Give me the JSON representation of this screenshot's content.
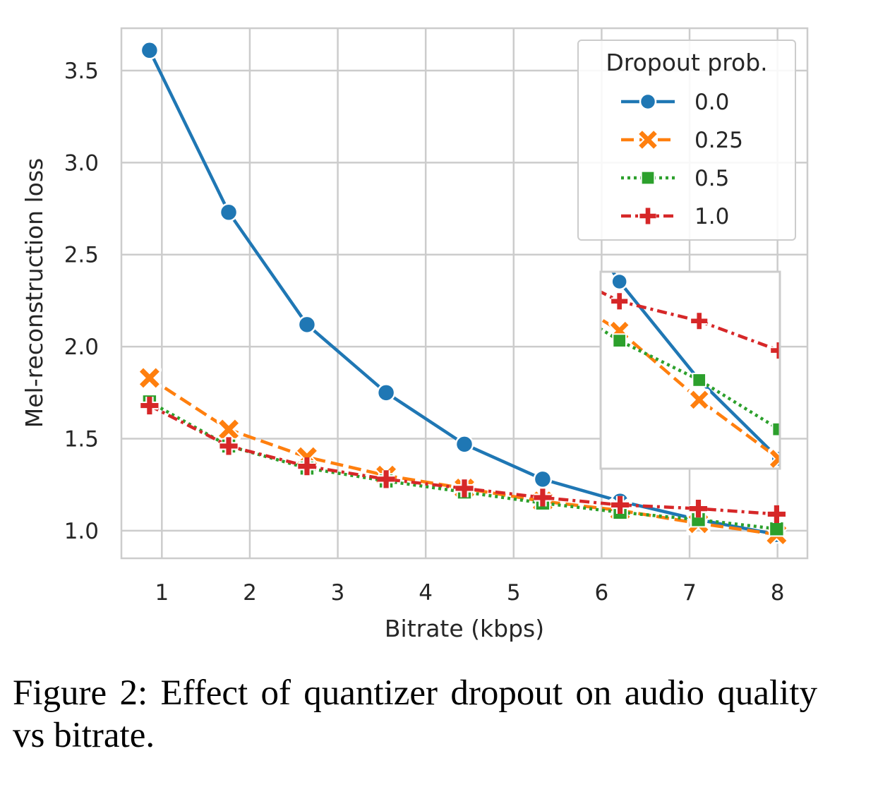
{
  "caption": "Figure 2: Effect of quantizer dropout on audio quality vs bitrate.",
  "chart_data": {
    "type": "line",
    "xlabel": "Bitrate (kbps)",
    "ylabel": "Mel-reconstruction loss",
    "xlim": [
      0.54,
      8.34
    ],
    "ylim": [
      0.85,
      3.73
    ],
    "xticks": [
      1,
      2,
      3,
      4,
      5,
      6,
      7,
      8
    ],
    "yticks": [
      1.0,
      1.5,
      2.0,
      2.5,
      3.0,
      3.5
    ],
    "xtick_labels": [
      "1",
      "2",
      "3",
      "4",
      "5",
      "6",
      "7",
      "8"
    ],
    "ytick_labels": [
      "1.0",
      "1.5",
      "2.0",
      "2.5",
      "3.0",
      "3.5"
    ],
    "grid": true,
    "legend": {
      "title": "Dropout prob.",
      "placement": "top-right"
    },
    "x": [
      0.86,
      1.76,
      2.65,
      3.55,
      4.44,
      5.33,
      6.21,
      7.1,
      7.99
    ],
    "series": [
      {
        "name": "0.0",
        "color": "#1f77b4",
        "marker": "circle",
        "linestyle": "solid",
        "values": [
          3.61,
          2.73,
          2.12,
          1.75,
          1.47,
          1.28,
          1.16,
          1.06,
          0.98
        ]
      },
      {
        "name": "0.25",
        "color": "#ff7f0e",
        "marker": "x",
        "linestyle": "dashed",
        "values": [
          1.83,
          1.55,
          1.4,
          1.3,
          1.23,
          1.16,
          1.11,
          1.04,
          0.98
        ]
      },
      {
        "name": "0.5",
        "color": "#2ca02c",
        "marker": "square",
        "linestyle": "dotted",
        "values": [
          1.7,
          1.46,
          1.34,
          1.27,
          1.21,
          1.15,
          1.1,
          1.06,
          1.01
        ]
      },
      {
        "name": "1.0",
        "color": "#d62728",
        "marker": "plus",
        "linestyle": "dashdot",
        "values": [
          1.68,
          1.46,
          1.35,
          1.28,
          1.23,
          1.18,
          1.14,
          1.12,
          1.09
        ]
      }
    ],
    "inset": {
      "x_range": [
        6.0,
        8.0
      ],
      "y_range": [
        0.97,
        1.17
      ],
      "x": [
        6.21,
        7.1,
        7.99
      ],
      "series_values": [
        [
          1.16,
          1.06,
          0.98
        ],
        [
          1.11,
          1.04,
          0.98
        ],
        [
          1.1,
          1.06,
          1.01
        ],
        [
          1.14,
          1.12,
          1.09
        ]
      ]
    }
  }
}
